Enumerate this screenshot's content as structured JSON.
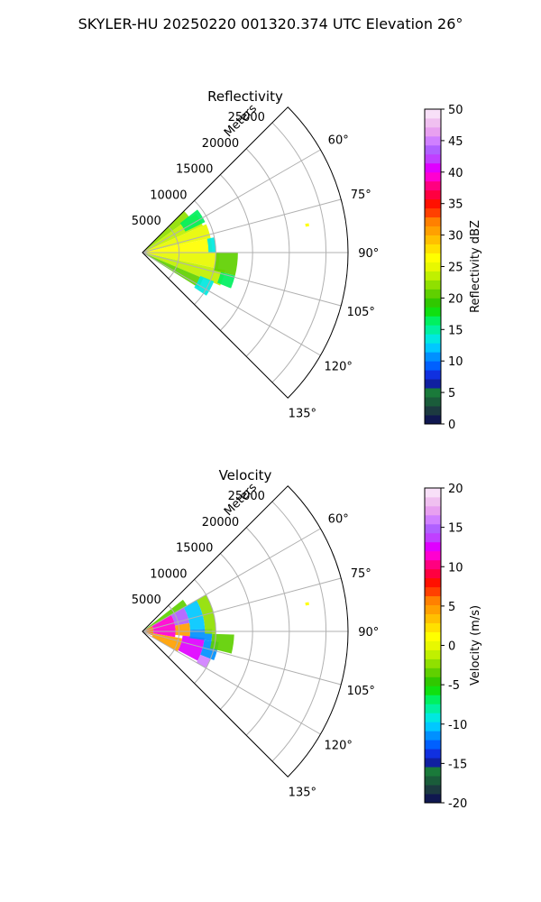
{
  "figure": {
    "title": "SKYLER-HU  20250220  001320.374 UTC Elevation 26°"
  },
  "chart_data": [
    {
      "type": "polar-sector-heatmap",
      "title": "Reflectivity",
      "range_label": "Meters",
      "range_ticks": [
        5000,
        10000,
        15000,
        20000,
        25000
      ],
      "range_max": 28000,
      "azimuth_ticks": [
        60,
        75,
        90,
        105,
        120,
        135
      ],
      "azimuth_range": [
        45,
        135
      ],
      "grid": true,
      "colorbar": {
        "label": "Reflectivity dBZ",
        "min": 0,
        "max": 50,
        "ticks": [
          0,
          5,
          10,
          15,
          20,
          25,
          30,
          35,
          40,
          45,
          50
        ],
        "colors": [
          "#101850",
          "#1c3a40",
          "#1a5c3a",
          "#1a7a3a",
          "#1020a0",
          "#1030e0",
          "#0060ff",
          "#0090ff",
          "#00c8ff",
          "#00e8e0",
          "#00f0a0",
          "#00f060",
          "#10e010",
          "#30c800",
          "#60d000",
          "#90e000",
          "#c0f000",
          "#e8f800",
          "#ffff00",
          "#ffe000",
          "#ffc000",
          "#ffa000",
          "#ff8000",
          "#ff4000",
          "#ff1000",
          "#ff0040",
          "#ff0080",
          "#ff00d0",
          "#e000ff",
          "#c040ff",
          "#b060ff",
          "#d080ff",
          "#e8a0f0",
          "#f0c0f0",
          "#f8e0f8"
        ]
      },
      "echo_cells": [
        {
          "az_start": 45,
          "az_end": 54,
          "r_start": 0,
          "r_end": 8000,
          "value": 22
        },
        {
          "az_start": 54,
          "az_end": 66,
          "r_start": 0,
          "r_end": 9000,
          "value": 24
        },
        {
          "az_start": 66,
          "az_end": 78,
          "r_start": 0,
          "r_end": 9500,
          "value": 25
        },
        {
          "az_start": 78,
          "az_end": 90,
          "r_start": 0,
          "r_end": 9500,
          "value": 26
        },
        {
          "az_start": 90,
          "az_end": 102,
          "r_start": 0,
          "r_end": 10500,
          "value": 25
        },
        {
          "az_start": 102,
          "az_end": 113,
          "r_start": 0,
          "r_end": 11500,
          "value": 23
        },
        {
          "az_start": 113,
          "az_end": 122,
          "r_start": 0,
          "r_end": 9000,
          "value": 21
        },
        {
          "az_start": 52,
          "az_end": 64,
          "r_start": 6500,
          "r_end": 9500,
          "value": 16
        },
        {
          "az_start": 78,
          "az_end": 90,
          "r_start": 9000,
          "r_end": 10000,
          "value": 14
        },
        {
          "az_start": 90,
          "az_end": 104,
          "r_start": 10000,
          "r_end": 13000,
          "value": 20
        },
        {
          "az_start": 104,
          "az_end": 112,
          "r_start": 11000,
          "r_end": 13000,
          "value": 17
        },
        {
          "az_start": 112,
          "az_end": 124,
          "r_start": 8500,
          "r_end": 10500,
          "value": 14
        },
        {
          "az_start": 80,
          "az_end": 81,
          "r_start": 22500,
          "r_end": 23000,
          "value": 26
        }
      ]
    },
    {
      "type": "polar-sector-heatmap",
      "title": "Velocity",
      "range_label": "Meters",
      "range_ticks": [
        5000,
        10000,
        15000,
        20000,
        25000
      ],
      "range_max": 28000,
      "azimuth_ticks": [
        60,
        75,
        90,
        105,
        120,
        135
      ],
      "azimuth_range": [
        45,
        135
      ],
      "grid": true,
      "colorbar": {
        "label": "Velocity (m/s)",
        "min": -20,
        "max": 20,
        "ticks": [
          -20,
          -15,
          -10,
          -5,
          0,
          5,
          10,
          15,
          20
        ],
        "colors": [
          "#101850",
          "#1c3a40",
          "#1a5c3a",
          "#1a7a3a",
          "#1020a0",
          "#1030e0",
          "#0060ff",
          "#0090ff",
          "#00c8ff",
          "#00e8e0",
          "#00f0a0",
          "#00f060",
          "#10e010",
          "#30c800",
          "#60d000",
          "#90e000",
          "#c0f000",
          "#e8f800",
          "#ffff00",
          "#ffe000",
          "#ffc000",
          "#ffa000",
          "#ff8000",
          "#ff4000",
          "#ff1000",
          "#ff0040",
          "#ff0080",
          "#ff00d0",
          "#e000ff",
          "#c040ff",
          "#b060ff",
          "#d080ff",
          "#e8a0f0",
          "#f0c0f0",
          "#f8e0f8"
        ]
      },
      "echo_cells": [
        {
          "az_start": 60,
          "az_end": 112,
          "r_start": 0,
          "r_end": 1500,
          "value": 6
        },
        {
          "az_start": 60,
          "az_end": 100,
          "r_start": 1500,
          "r_end": 4500,
          "value": 11
        },
        {
          "az_start": 100,
          "az_end": 120,
          "r_start": 1500,
          "r_end": 5500,
          "value": 4
        },
        {
          "az_start": 52,
          "az_end": 60,
          "r_start": 0,
          "r_end": 7000,
          "value": -4
        },
        {
          "az_start": 60,
          "az_end": 80,
          "r_start": 4500,
          "r_end": 6500,
          "value": 15
        },
        {
          "az_start": 80,
          "az_end": 96,
          "r_start": 4500,
          "r_end": 6500,
          "value": 4
        },
        {
          "az_start": 96,
          "az_end": 118,
          "r_start": 5500,
          "r_end": 8500,
          "value": 12
        },
        {
          "az_start": 60,
          "az_end": 88,
          "r_start": 6500,
          "r_end": 8500,
          "value": -10
        },
        {
          "az_start": 88,
          "az_end": 98,
          "r_start": 6500,
          "r_end": 9500,
          "value": -12
        },
        {
          "az_start": 98,
          "az_end": 112,
          "r_start": 8500,
          "r_end": 10500,
          "value": -11
        },
        {
          "az_start": 112,
          "az_end": 120,
          "r_start": 8500,
          "r_end": 10000,
          "value": 16
        },
        {
          "az_start": 60,
          "az_end": 92,
          "r_start": 8500,
          "r_end": 10000,
          "value": -2
        },
        {
          "az_start": 92,
          "az_end": 104,
          "r_start": 9500,
          "r_end": 12500,
          "value": -3
        },
        {
          "az_start": 80,
          "az_end": 81,
          "r_start": 22500,
          "r_end": 23000,
          "value": 1
        }
      ]
    }
  ]
}
